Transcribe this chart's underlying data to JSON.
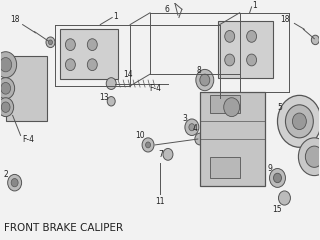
{
  "title": "FRONT BRAKE CALIPER",
  "bg_color": "#f2f2f2",
  "line_color": "#555555",
  "text_color": "#222222",
  "title_fontsize": 7.5,
  "pad_color": "#d0d0d0",
  "caliper_color": "#c8c8c8",
  "part_color": "#bbbbbb"
}
